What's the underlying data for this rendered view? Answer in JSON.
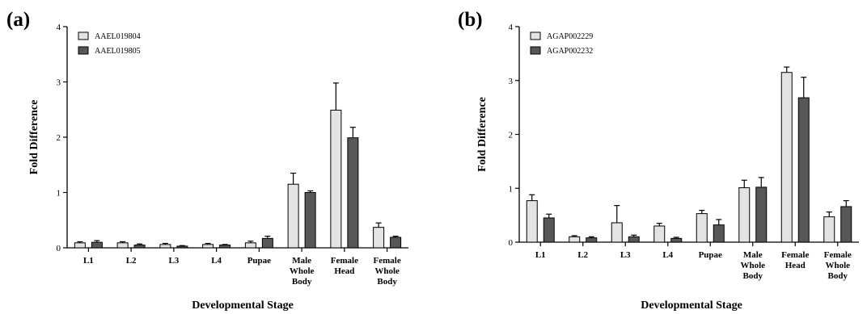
{
  "chart_data": [
    {
      "type": "bar",
      "panel_label": "(a)",
      "categories": [
        [
          "L1"
        ],
        [
          "L2"
        ],
        [
          "L3"
        ],
        [
          "L4"
        ],
        [
          "Pupae"
        ],
        [
          "Male",
          "Whole",
          "Body"
        ],
        [
          "Female",
          "Head"
        ],
        [
          "Female",
          "Whole",
          "Body"
        ]
      ],
      "series": [
        {
          "name": "AAEL019804",
          "color": "#e3e3e3",
          "values": [
            0.09,
            0.09,
            0.06,
            0.06,
            0.09,
            1.15,
            2.49,
            0.37
          ],
          "errors": [
            0.02,
            0.02,
            0.02,
            0.02,
            0.03,
            0.2,
            0.49,
            0.08
          ]
        },
        {
          "name": "AAEL019805",
          "color": "#575757",
          "values": [
            0.1,
            0.05,
            0.03,
            0.05,
            0.17,
            1.0,
            1.99,
            0.19
          ],
          "errors": [
            0.03,
            0.02,
            0.01,
            0.01,
            0.04,
            0.03,
            0.19,
            0.02
          ]
        }
      ],
      "xlabel": "Developmental Stage",
      "ylabel": "Fold Difference",
      "ylim": [
        0,
        4
      ],
      "yticks": [
        0,
        1,
        2,
        3,
        4
      ],
      "legend": "top-left",
      "grid": false
    },
    {
      "type": "bar",
      "panel_label": "(b)",
      "categories": [
        [
          "L1"
        ],
        [
          "L2"
        ],
        [
          "L3"
        ],
        [
          "L4"
        ],
        [
          "Pupae"
        ],
        [
          "Male",
          "Whole",
          "Body"
        ],
        [
          "Female",
          "Head"
        ],
        [
          "Female",
          "Whole",
          "Body"
        ]
      ],
      "series": [
        {
          "name": "AGAP002229",
          "color": "#e3e3e3",
          "values": [
            0.77,
            0.1,
            0.36,
            0.3,
            0.53,
            1.01,
            3.15,
            0.47
          ],
          "errors": [
            0.11,
            0.02,
            0.32,
            0.05,
            0.06,
            0.14,
            0.1,
            0.09
          ]
        },
        {
          "name": "AGAP002232",
          "color": "#575757",
          "values": [
            0.45,
            0.08,
            0.1,
            0.07,
            0.32,
            1.02,
            2.68,
            0.66
          ],
          "errors": [
            0.07,
            0.02,
            0.03,
            0.02,
            0.1,
            0.18,
            0.38,
            0.11
          ]
        }
      ],
      "xlabel": "Developmental Stage",
      "ylabel": "Fold Difference",
      "ylim": [
        0,
        4
      ],
      "yticks": [
        0,
        1,
        2,
        3,
        4
      ],
      "legend": "top-left",
      "grid": false
    }
  ]
}
